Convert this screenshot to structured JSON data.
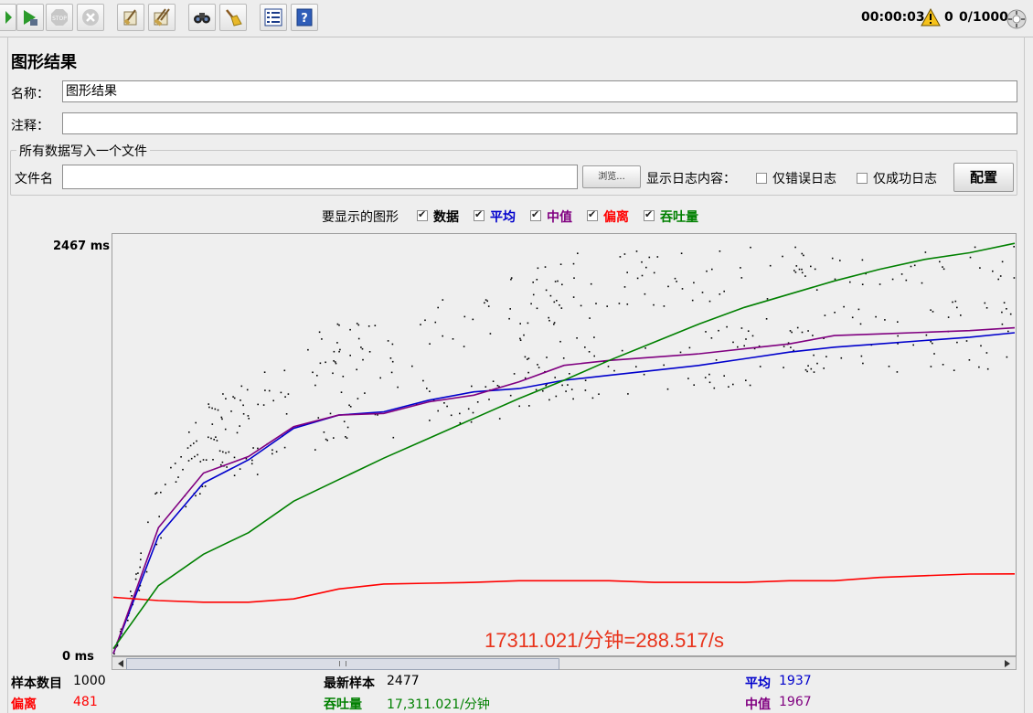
{
  "toolbar": {
    "timer": "00:00:03",
    "warnings": "0",
    "threads": "0/1000",
    "buttons": [
      "start-icon",
      "start-no-pause-icon",
      "stop-icon",
      "shutdown-icon",
      "clear-icon",
      "clear-all-icon",
      "search-icon",
      "reset-search-icon",
      "function-helper-icon",
      "help-icon"
    ]
  },
  "panel": {
    "title": "图形结果",
    "name_label": "名称：",
    "name_value": "图形结果",
    "comment_label": "注释：",
    "comment_value": "",
    "file_group_title": "所有数据写入一个文件",
    "file_label": "文件名",
    "file_value": "",
    "browse_label": "浏览...",
    "log_label": "显示日志内容：",
    "errors_only_label": "仅错误日志",
    "success_only_label": "仅成功日志",
    "configure_label": "配置"
  },
  "toggles": {
    "label": "要显示的图形",
    "items": [
      {
        "label": "数据",
        "checked": true,
        "color": "#000000"
      },
      {
        "label": "平均",
        "checked": true,
        "color": "#0000cc"
      },
      {
        "label": "中值",
        "checked": true,
        "color": "#800080"
      },
      {
        "label": "偏离",
        "checked": true,
        "color": "#ff0000"
      },
      {
        "label": "吞吐量",
        "checked": true,
        "color": "#008000"
      }
    ]
  },
  "chart_data": {
    "type": "line",
    "ymax_label": "2467 ms",
    "ymin_label": "0 ms",
    "ylim": [
      0,
      2467
    ],
    "x": [
      0,
      50,
      100,
      150,
      200,
      250,
      300,
      350,
      400,
      450,
      500,
      550,
      600,
      650,
      700,
      750,
      800,
      850,
      900,
      950,
      1000
    ],
    "series": [
      {
        "name": "平均",
        "color": "#0000cc",
        "values": [
          0,
          710,
          1030,
          1170,
          1360,
          1440,
          1460,
          1530,
          1580,
          1600,
          1650,
          1680,
          1710,
          1740,
          1780,
          1820,
          1850,
          1870,
          1890,
          1910,
          1937
        ]
      },
      {
        "name": "中值",
        "color": "#800080",
        "values": [
          0,
          760,
          1090,
          1190,
          1370,
          1440,
          1450,
          1520,
          1560,
          1640,
          1740,
          1770,
          1790,
          1810,
          1840,
          1870,
          1920,
          1930,
          1940,
          1950,
          1967
        ]
      },
      {
        "name": "偏离",
        "color": "#ff0000",
        "values": [
          340,
          320,
          310,
          310,
          330,
          390,
          420,
          425,
          430,
          440,
          440,
          440,
          430,
          430,
          430,
          440,
          440,
          460,
          470,
          480,
          481
        ]
      },
      {
        "name": "吞吐量",
        "color": "#008000",
        "values": [
          30,
          410,
          600,
          730,
          920,
          1050,
          1180,
          1300,
          1420,
          1540,
          1650,
          1770,
          1880,
          1990,
          2090,
          2170,
          2250,
          2320,
          2380,
          2420,
          2477
        ]
      }
    ],
    "annotation": "17311.021/分钟=288.517/s",
    "annotation_color": "#e8341c"
  },
  "stats": {
    "samples_label": "样本数目",
    "samples_value": "1000",
    "latest_label": "最新样本",
    "latest_value": "2477",
    "average_label": "平均",
    "average_value": "1937",
    "deviation_label": "偏离",
    "deviation_value": "481",
    "throughput_label": "吞吐量",
    "throughput_value": "17,311.021/分钟",
    "median_label": "中值",
    "median_value": "1967"
  }
}
